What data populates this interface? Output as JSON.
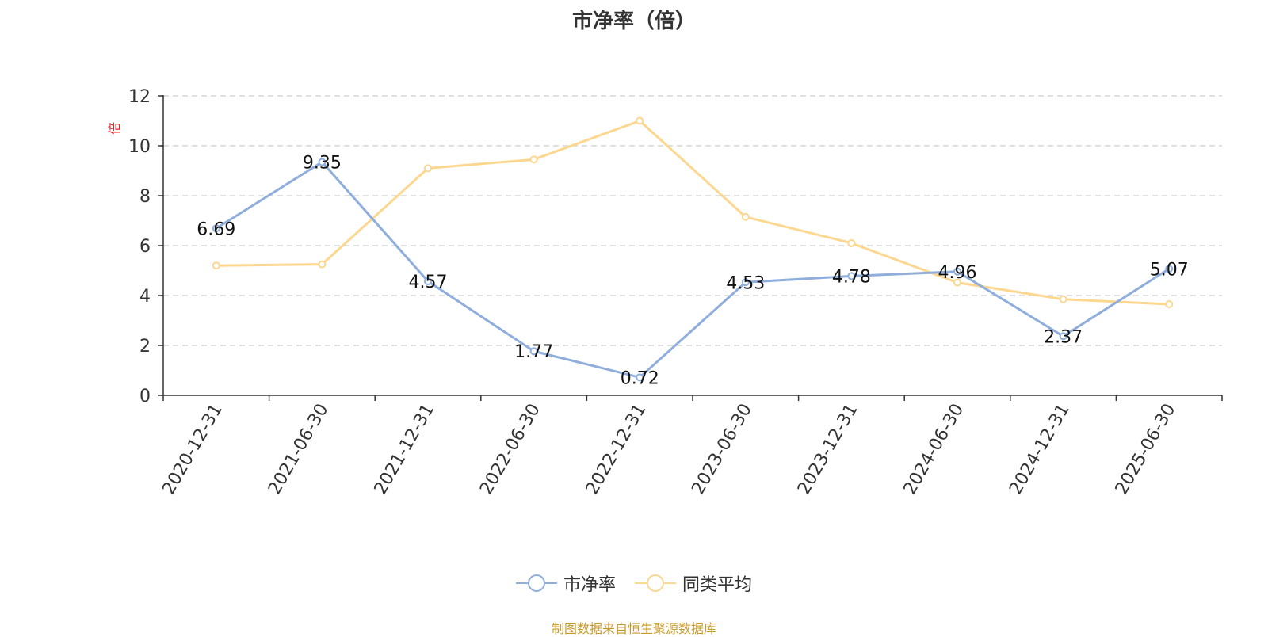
{
  "chart_data": {
    "type": "line",
    "title": "市净率（倍）",
    "ylabel": "倍",
    "categories": [
      "2020-12-31",
      "2021-06-30",
      "2021-12-31",
      "2022-06-30",
      "2022-12-31",
      "2023-06-30",
      "2023-12-31",
      "2024-06-30",
      "2024-12-31",
      "2025-06-30"
    ],
    "ylim": [
      0,
      12
    ],
    "yticks": [
      0,
      2,
      4,
      6,
      8,
      10,
      12
    ],
    "grid": true,
    "legend_position": "bottom",
    "series": [
      {
        "name": "市净率",
        "color": "#8faedb",
        "values": [
          6.69,
          9.35,
          4.57,
          1.77,
          0.72,
          4.53,
          4.78,
          4.96,
          2.37,
          5.07
        ],
        "data_labels": [
          "6.69",
          "9.35",
          "4.57",
          "1.77",
          "0.72",
          "4.53",
          "4.78",
          "4.96",
          "2.37",
          "5.07"
        ]
      },
      {
        "name": "同类平均",
        "color": "#fcd790",
        "values": [
          5.2,
          5.25,
          9.1,
          9.45,
          11.0,
          7.15,
          6.1,
          4.52,
          3.85,
          3.65
        ]
      }
    ]
  },
  "footer": "制图数据来自恒生聚源数据库"
}
